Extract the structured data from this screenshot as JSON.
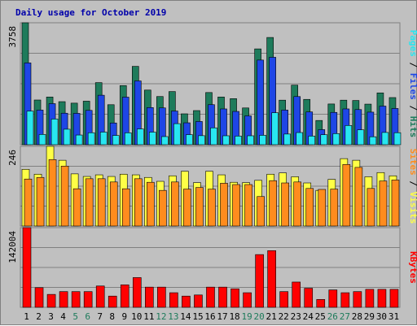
{
  "chart_data": {
    "title": "Daily usage for October 2019",
    "categories": [
      "1",
      "2",
      "3",
      "4",
      "5",
      "6",
      "7",
      "8",
      "9",
      "10",
      "11",
      "12",
      "13",
      "14",
      "15",
      "16",
      "17",
      "18",
      "19",
      "20",
      "21",
      "22",
      "23",
      "24",
      "25",
      "26",
      "27",
      "28",
      "29",
      "30",
      "31"
    ],
    "weekend_days": [
      "5",
      "6",
      "12",
      "13",
      "19",
      "20",
      "26",
      "27"
    ],
    "colors": {
      "hits": "#1e7b5b",
      "files": "#1e46e6",
      "pages": "#28e6f0",
      "visits": "#ffff46",
      "sites": "#ff8c1e",
      "kbytes": "#ff0000",
      "weekend_label": "#1e7b5b",
      "weekday_label": "#000000",
      "title": "#0000aa",
      "background": "#c0c0c0",
      "plot_background": "#c0c0c0"
    },
    "panels": [
      {
        "type": "bar",
        "ymax_label": "3758",
        "ylim": [
          0,
          3758
        ],
        "legend": [
          "Pages",
          "Files",
          "Hits"
        ],
        "series": [
          {
            "name": "Hits",
            "key": "hits",
            "values": [
              3758,
              1378,
              1470,
              1327,
              1281,
              1342,
              1914,
              1233,
              1822,
              2415,
              1684,
              1485,
              1638,
              952,
              1052,
              1608,
              1470,
              1420,
              1133,
              2953,
              3305,
              1373,
              1836,
              1397,
              747,
              1255,
              1373,
              1363,
              1251,
              1597,
              1453
            ]
          },
          {
            "name": "Files",
            "key": "files",
            "values": [
              2521,
              1068,
              1266,
              971,
              966,
              1058,
              1525,
              670,
              1466,
              1966,
              1145,
              1134,
              1038,
              675,
              716,
              1234,
              1103,
              1026,
              889,
              2609,
              2695,
              1068,
              1484,
              1011,
              465,
              996,
              1103,
              1083,
              1004,
              1190,
              1117
            ]
          },
          {
            "name": "Pages",
            "key": "pages",
            "values": [
              1037,
              316,
              792,
              478,
              299,
              369,
              389,
              285,
              368,
              486,
              388,
              251,
              649,
              310,
              279,
              520,
              276,
              266,
              276,
              290,
              986,
              329,
              375,
              266,
              308,
              342,
              592,
              459,
              245,
              378,
              370
            ]
          }
        ]
      },
      {
        "type": "bar",
        "ymax_label": "246",
        "ylim": [
          0,
          246
        ],
        "legend": [
          "Sites",
          "Visits"
        ],
        "series": [
          {
            "name": "Visits",
            "key": "visits",
            "values": [
              175,
              160,
              246,
              203,
              161,
              153,
              158,
              153,
              160,
              158,
              150,
              138,
              155,
              169,
              134,
              169,
              158,
              135,
              134,
              141,
              160,
              164,
              152,
              133,
              110,
              144,
              208,
              203,
              152,
              165,
              155
            ]
          },
          {
            "name": "Sites",
            "key": "sites",
            "values": [
              145,
              150,
              205,
              185,
              115,
              146,
              146,
              136,
              115,
              146,
              135,
              110,
              136,
              114,
              119,
              114,
              132,
              128,
              128,
              91,
              140,
              133,
              136,
              116,
              113,
              114,
              190,
              181,
              116,
              139,
              142
            ]
          }
        ]
      },
      {
        "type": "bar",
        "ymax_label": "142004",
        "ylim": [
          0,
          142004
        ],
        "legend": [
          "KBytes"
        ],
        "series": [
          {
            "name": "KBytes",
            "key": "kbytes",
            "values": [
              142004,
              35030,
              23000,
              28000,
              28000,
              28000,
              38000,
              20000,
              40000,
              53000,
              36000,
              36000,
              26000,
              20000,
              22000,
              36000,
              36000,
              33000,
              26000,
              94000,
              101000,
              28000,
              45000,
              34000,
              14000,
              31000,
              26000,
              28000,
              32000,
              32000,
              32000
            ]
          }
        ]
      }
    ]
  }
}
